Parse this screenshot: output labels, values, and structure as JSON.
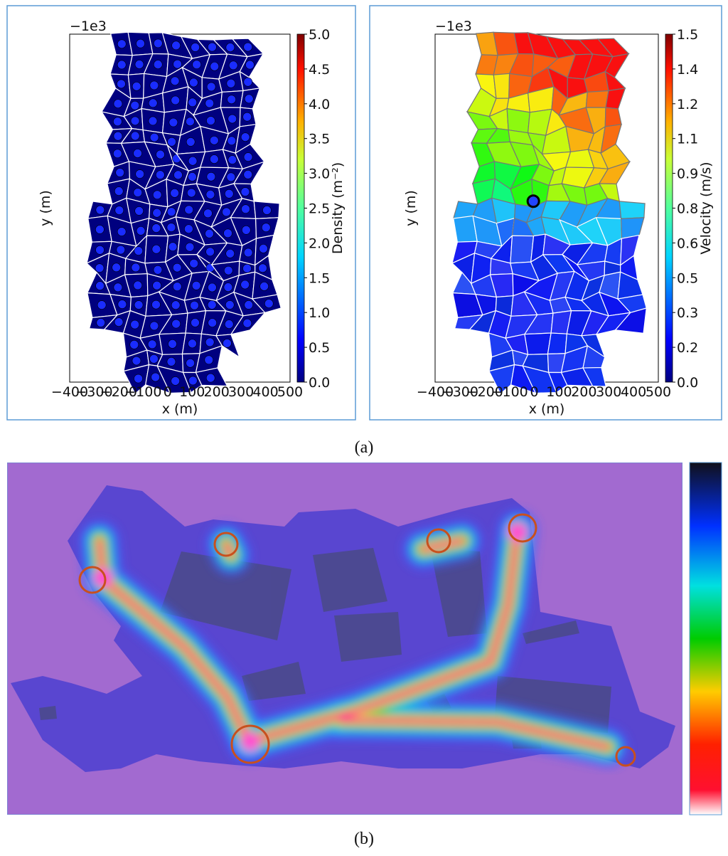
{
  "panel_a": {
    "left": {
      "offset_text": "−1e3",
      "xlabel": "x (m)",
      "ylabel": "y (m)",
      "xticks": [
        "−400",
        "−300",
        "−200",
        "−100",
        "0",
        "100",
        "200",
        "300",
        "400",
        "500"
      ],
      "colorbar_label": "Density (m⁻²)",
      "colorbar_ticks": [
        "0.0",
        "0.5",
        "1.0",
        "1.5",
        "2.0",
        "2.5",
        "3.0",
        "3.5",
        "4.0",
        "4.5",
        "5.0"
      ]
    },
    "right": {
      "offset_text": "−1e3",
      "xlabel": "x (m)",
      "ylabel": "y (m)",
      "xticks": [
        "−400",
        "−300",
        "−200",
        "−100",
        "0",
        "100",
        "200",
        "300",
        "400",
        "500"
      ],
      "colorbar_label": "Velocity (m/s)",
      "colorbar_ticks": [
        "0.0",
        "0.2",
        "0.3",
        "0.5",
        "0.6",
        "0.8",
        "0.9",
        "1.1",
        "1.2",
        "1.4",
        "1.5"
      ]
    }
  },
  "caption_a": "(a)",
  "caption_b": "(b)"
}
